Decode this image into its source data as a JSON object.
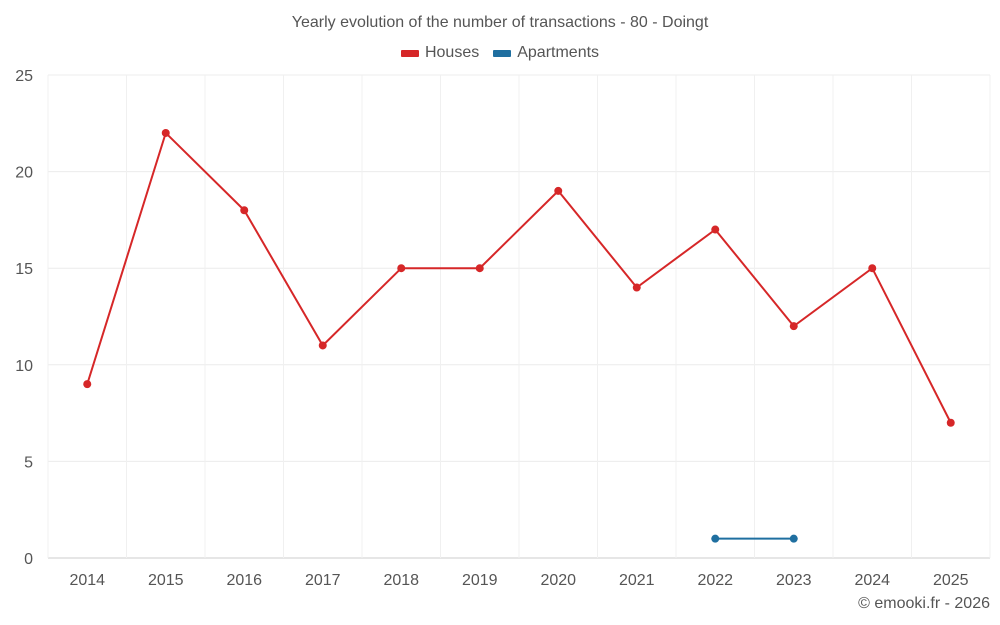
{
  "chart_data": {
    "type": "line",
    "title": "Yearly evolution of the number of transactions - 80 - Doingt",
    "categories": [
      "2014",
      "2015",
      "2016",
      "2017",
      "2018",
      "2019",
      "2020",
      "2021",
      "2022",
      "2023",
      "2024",
      "2025"
    ],
    "series": [
      {
        "name": "Houses",
        "color": "#d62728",
        "values": [
          9,
          22,
          18,
          11,
          15,
          15,
          19,
          14,
          17,
          12,
          15,
          7
        ]
      },
      {
        "name": "Apartments",
        "color": "#1f6fa0",
        "values": [
          null,
          null,
          null,
          null,
          null,
          null,
          null,
          null,
          1,
          1,
          null,
          null
        ]
      }
    ],
    "ylim": [
      0,
      25
    ],
    "yticks": [
      0,
      5,
      10,
      15,
      20,
      25
    ],
    "xlabel": "",
    "ylabel": "",
    "grid": true,
    "legend_position": "top-center"
  },
  "credit": "© emooki.fr - 2026"
}
